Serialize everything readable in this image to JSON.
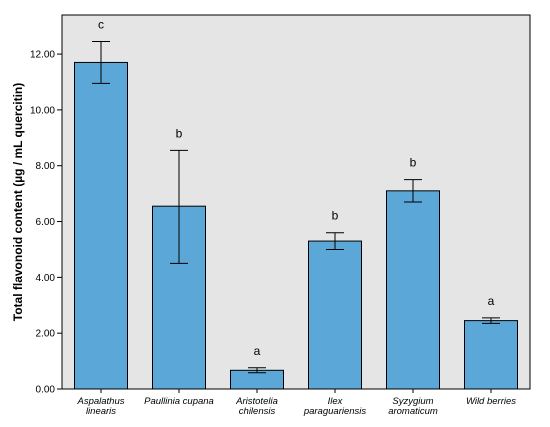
{
  "chart_data": {
    "type": "bar",
    "ylabel": "Total flavonoid content (µg / mL quercitin)",
    "ylim": [
      0,
      13.4
    ],
    "yticks": [
      "0.00",
      "2.00",
      "4.00",
      "6.00",
      "8.00",
      "10.00",
      "12.00"
    ],
    "categories": [
      [
        "Aspalathus",
        "linearis"
      ],
      [
        "Paullinia cupana"
      ],
      [
        "Aristotelia",
        "chilensis"
      ],
      [
        "Ilex",
        "paraguariensis"
      ],
      [
        "Syzygium",
        "aromaticum"
      ],
      [
        "Wild berries"
      ]
    ],
    "values": [
      11.7,
      6.55,
      0.67,
      5.3,
      7.1,
      2.45
    ],
    "error_low": [
      10.95,
      4.5,
      0.58,
      5.0,
      6.7,
      2.35
    ],
    "error_high": [
      12.45,
      8.55,
      0.76,
      5.6,
      7.5,
      2.55
    ],
    "significance": [
      "c",
      "b",
      "a",
      "b",
      "b",
      "a"
    ],
    "bar_color": "#5ba7d8",
    "plot_background": "#e5e5e5",
    "grid": false
  }
}
